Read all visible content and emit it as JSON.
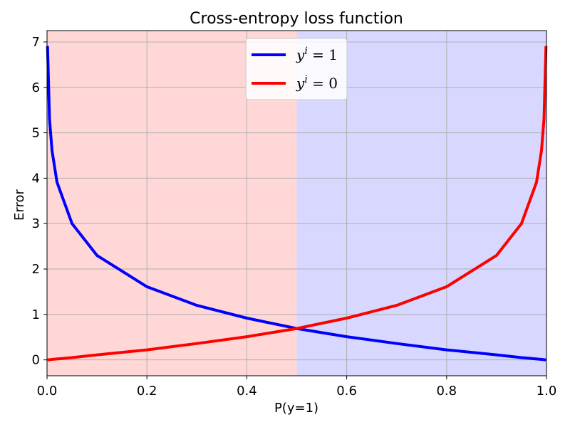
{
  "chart_data": {
    "type": "line",
    "title": "Cross-entropy loss function",
    "xlabel": "P(y=1)",
    "ylabel": "Error",
    "xlim": [
      0.0,
      1.0
    ],
    "ylim": [
      -0.35,
      7.25
    ],
    "xticks": [
      0.0,
      0.2,
      0.4,
      0.6,
      0.8,
      1.0
    ],
    "xtick_labels": [
      "0.0",
      "0.2",
      "0.4",
      "0.6",
      "0.8",
      "1.0"
    ],
    "yticks": [
      0,
      1,
      2,
      3,
      4,
      5,
      6,
      7
    ],
    "ytick_labels": [
      "0",
      "1",
      "2",
      "3",
      "4",
      "5",
      "6",
      "7"
    ],
    "grid": true,
    "legend_position": "top-center",
    "regions": [
      {
        "x_from": 0.0,
        "x_to": 0.5,
        "color": "#ffd7d7"
      },
      {
        "x_from": 0.5,
        "x_to": 1.0,
        "color": "#d7d7ff"
      }
    ],
    "series": [
      {
        "name_prefix": "y",
        "name_sup": "i",
        "name_suffix": " = 1",
        "color": "#0000ff",
        "x": [
          0.001,
          0.005,
          0.01,
          0.02,
          0.05,
          0.1,
          0.2,
          0.3,
          0.4,
          0.5,
          0.6,
          0.7,
          0.8,
          0.9,
          0.95,
          0.99,
          0.999
        ],
        "values": [
          6.91,
          5.3,
          4.61,
          3.91,
          3.0,
          2.3,
          1.61,
          1.2,
          0.92,
          0.69,
          0.51,
          0.36,
          0.22,
          0.11,
          0.05,
          0.01,
          0.0
        ]
      },
      {
        "name_prefix": "y",
        "name_sup": "i",
        "name_suffix": " = 0",
        "color": "#ff0000",
        "x": [
          0.001,
          0.01,
          0.05,
          0.1,
          0.2,
          0.3,
          0.4,
          0.5,
          0.6,
          0.7,
          0.8,
          0.9,
          0.95,
          0.98,
          0.99,
          0.995,
          0.999
        ],
        "values": [
          0.0,
          0.01,
          0.05,
          0.11,
          0.22,
          0.36,
          0.51,
          0.69,
          0.92,
          1.2,
          1.61,
          2.3,
          3.0,
          3.91,
          4.61,
          5.3,
          6.91
        ]
      }
    ]
  }
}
